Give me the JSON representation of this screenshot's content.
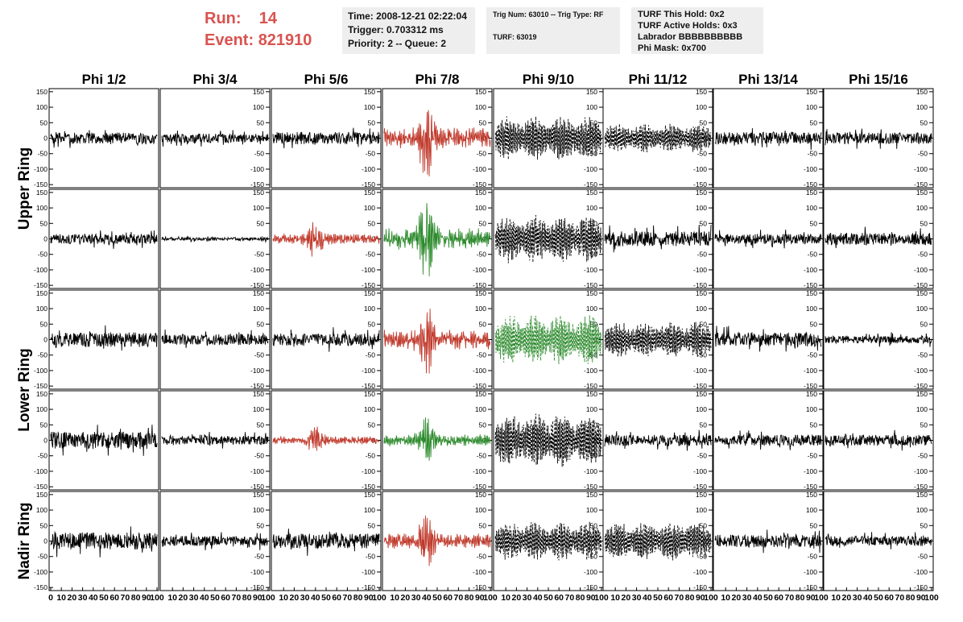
{
  "header": {
    "run_label": "Run:",
    "run_value": "14",
    "event_label": "Event:",
    "event_value": "821910",
    "time": "Time: 2008-12-21 02:22:04",
    "trigger": "Trigger: 0.703312 ms",
    "priority": "Priority: 2 -- Queue: 2",
    "trig_num": "Trig Num: 63010 -- Trig Type: RF",
    "turf": "TURF: 63019",
    "turf_hold": "TURF This Hold: 0x2",
    "turf_active": "TURF Active Holds: 0x3",
    "labrador": "Labrador BBBBBBBBBB",
    "phi_mask": "Phi Mask: 0x700"
  },
  "colors": {
    "default": "#000000",
    "red": "#c0392b",
    "green": "#2e8b2e",
    "accent": "#d9534f"
  },
  "chart_data": {
    "type": "line",
    "columns": [
      "Phi 1/2",
      "Phi 3/4",
      "Phi 5/6",
      "Phi 7/8",
      "Phi 9/10",
      "Phi 11/12",
      "Phi 13/14",
      "Phi 15/16"
    ],
    "rows": [
      "Upper Ring",
      "Upper Ring",
      "Lower Ring",
      "Lower Ring",
      "Nadir Ring"
    ],
    "row_labels": [
      "Upper Ring",
      "Lower Ring",
      "Nadir Ring"
    ],
    "ylim": [
      -160,
      160
    ],
    "xlim": [
      0,
      100
    ],
    "y_ticks": [
      -150,
      -100,
      -50,
      0,
      50,
      100,
      150
    ],
    "x_ticks": [
      "0",
      "10",
      "20",
      "30",
      "40",
      "50",
      "60",
      "70",
      "80",
      "90",
      "100"
    ],
    "panels": [
      [
        {
          "amp": 22,
          "color": "default",
          "style": "solid",
          "shape": "noise"
        },
        {
          "amp": 18,
          "color": "default",
          "style": "solid",
          "shape": "noise"
        },
        {
          "amp": 25,
          "color": "default",
          "style": "solid",
          "shape": "noise"
        },
        {
          "amp": 140,
          "color": "red",
          "style": "solid",
          "shape": "burst"
        },
        {
          "amp": 75,
          "color": "default",
          "style": "dashed",
          "shape": "wave"
        },
        {
          "amp": 50,
          "color": "default",
          "style": "dashed",
          "shape": "wave"
        },
        {
          "amp": 25,
          "color": "default",
          "style": "solid",
          "shape": "noise"
        },
        {
          "amp": 22,
          "color": "default",
          "style": "solid",
          "shape": "noise"
        }
      ],
      [
        {
          "amp": 20,
          "color": "default",
          "style": "solid",
          "shape": "noise"
        },
        {
          "amp": 6,
          "color": "default",
          "style": "solid",
          "shape": "noise"
        },
        {
          "amp": 70,
          "color": "red",
          "style": "solid",
          "shape": "burst"
        },
        {
          "amp": 140,
          "color": "green",
          "style": "solid",
          "shape": "burst"
        },
        {
          "amp": 80,
          "color": "default",
          "style": "dashed",
          "shape": "wave"
        },
        {
          "amp": 30,
          "color": "default",
          "style": "solid",
          "shape": "noise"
        },
        {
          "amp": 20,
          "color": "default",
          "style": "solid",
          "shape": "noise"
        },
        {
          "amp": 25,
          "color": "default",
          "style": "solid",
          "shape": "noise"
        }
      ],
      [
        {
          "amp": 30,
          "color": "default",
          "style": "solid",
          "shape": "noise"
        },
        {
          "amp": 22,
          "color": "default",
          "style": "solid",
          "shape": "noise"
        },
        {
          "amp": 25,
          "color": "default",
          "style": "solid",
          "shape": "noise"
        },
        {
          "amp": 130,
          "color": "red",
          "style": "solid",
          "shape": "burst"
        },
        {
          "amp": 85,
          "color": "green",
          "style": "dashed",
          "shape": "wave"
        },
        {
          "amp": 60,
          "color": "default",
          "style": "dashed",
          "shape": "wave"
        },
        {
          "amp": 28,
          "color": "default",
          "style": "solid",
          "shape": "noise"
        },
        {
          "amp": 15,
          "color": "default",
          "style": "solid",
          "shape": "noise"
        }
      ],
      [
        {
          "amp": 35,
          "color": "default",
          "style": "solid",
          "shape": "noise"
        },
        {
          "amp": 18,
          "color": "default",
          "style": "solid",
          "shape": "noise"
        },
        {
          "amp": 55,
          "color": "red",
          "style": "solid",
          "shape": "burst"
        },
        {
          "amp": 80,
          "color": "green",
          "style": "solid",
          "shape": "burst"
        },
        {
          "amp": 90,
          "color": "default",
          "style": "dashed",
          "shape": "wave"
        },
        {
          "amp": 22,
          "color": "default",
          "style": "solid",
          "shape": "noise"
        },
        {
          "amp": 22,
          "color": "default",
          "style": "solid",
          "shape": "noise"
        },
        {
          "amp": 22,
          "color": "default",
          "style": "solid",
          "shape": "noise"
        }
      ],
      [
        {
          "amp": 35,
          "color": "default",
          "style": "solid",
          "shape": "noise"
        },
        {
          "amp": 20,
          "color": "default",
          "style": "solid",
          "shape": "noise"
        },
        {
          "amp": 30,
          "color": "default",
          "style": "solid",
          "shape": "noise"
        },
        {
          "amp": 100,
          "color": "red",
          "style": "solid",
          "shape": "burst"
        },
        {
          "amp": 65,
          "color": "default",
          "style": "dashed",
          "shape": "wave"
        },
        {
          "amp": 65,
          "color": "default",
          "style": "dashed",
          "shape": "wave"
        },
        {
          "amp": 25,
          "color": "default",
          "style": "solid",
          "shape": "noise"
        },
        {
          "amp": 20,
          "color": "default",
          "style": "solid",
          "shape": "noise"
        }
      ]
    ]
  }
}
